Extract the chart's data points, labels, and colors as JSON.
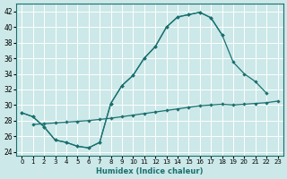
{
  "xlabel": "Humidex (Indice chaleur)",
  "bg_color": "#cce8e8",
  "grid_color": "#ffffff",
  "line_color": "#1a7070",
  "xlim": [
    -0.5,
    23.5
  ],
  "ylim": [
    23.5,
    43.0
  ],
  "yticks": [
    24,
    26,
    28,
    30,
    32,
    34,
    36,
    38,
    40,
    42
  ],
  "s1_x": [
    0,
    1,
    2,
    3,
    4,
    5,
    6,
    7,
    8,
    9,
    10,
    11,
    12,
    13,
    14,
    15,
    16,
    17,
    18
  ],
  "s1_y": [
    29.0,
    28.5,
    27.2,
    25.5,
    25.2,
    24.7,
    24.5,
    25.2,
    30.2,
    32.5,
    33.8,
    36.0,
    37.5,
    40.0,
    41.3,
    41.6,
    41.9,
    41.2,
    39.0
  ],
  "s2_x": [
    0,
    1,
    2,
    3,
    4,
    5,
    6,
    7,
    8,
    9,
    10,
    11,
    12,
    13,
    14,
    15,
    16,
    17,
    18,
    19,
    20,
    21,
    22
  ],
  "s2_y": [
    29.0,
    28.5,
    27.2,
    25.5,
    25.2,
    24.7,
    24.5,
    25.2,
    30.2,
    32.5,
    33.8,
    36.0,
    37.5,
    40.0,
    41.3,
    41.6,
    41.9,
    41.2,
    39.0,
    35.5,
    34.0,
    33.0,
    31.5
  ],
  "s3_x": [
    1,
    2,
    3,
    4,
    5,
    6,
    7,
    8,
    9,
    10,
    11,
    12,
    13,
    14,
    15,
    16,
    17,
    18,
    19,
    20,
    21,
    22,
    23
  ],
  "s3_y": [
    27.5,
    27.6,
    27.7,
    27.8,
    27.9,
    28.0,
    28.15,
    28.3,
    28.5,
    28.7,
    28.9,
    29.1,
    29.3,
    29.5,
    29.7,
    29.9,
    30.0,
    30.1,
    30.0,
    30.1,
    30.2,
    30.3,
    30.5
  ]
}
